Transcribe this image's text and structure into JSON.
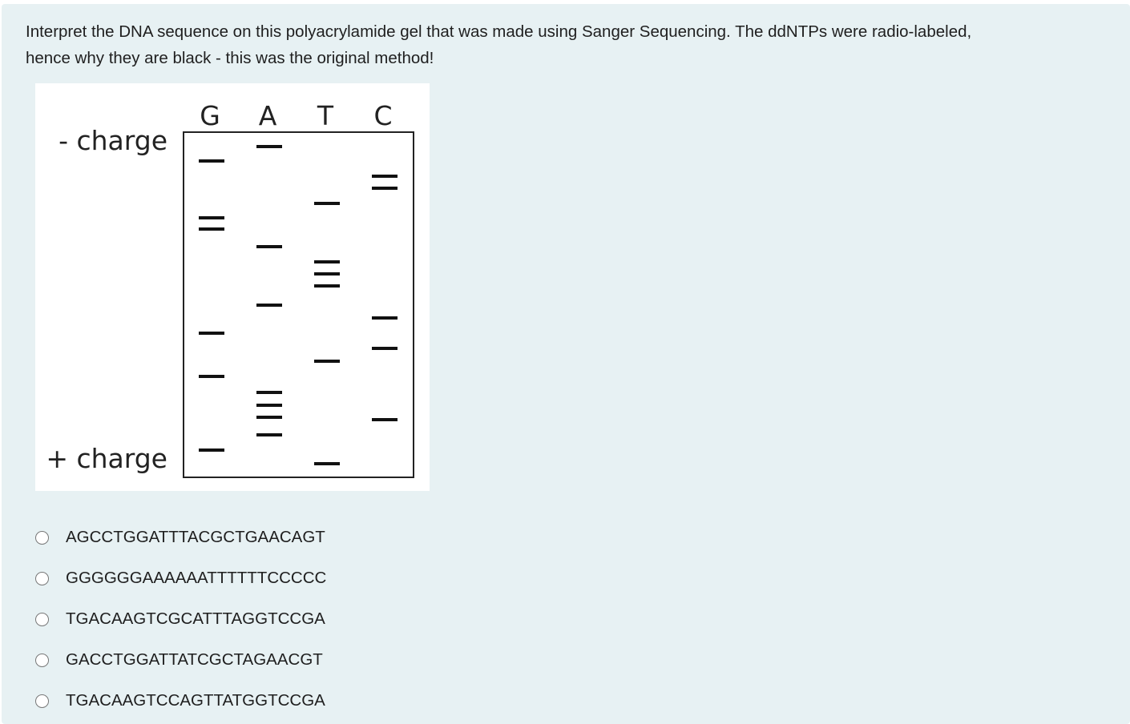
{
  "question": {
    "text_line1": "Interpret the DNA sequence on this polyacrylamide gel that was made using Sanger Sequencing. The ddNTPs were radio-labeled,",
    "text_line2": "hence why they are black - this was the original method!"
  },
  "gel": {
    "lanes": [
      "G",
      "A",
      "T",
      "C"
    ],
    "top_label": "- charge",
    "bottom_label": "+ charge"
  },
  "options": [
    "AGCCTGGATTTACGCTGAACAGT",
    "GGGGGGAAAAAATTTTTTCCCCC",
    "TGACAAGTCGCATTTAGGTCCGA",
    "GACCTGGATTATCGCTAGAACGT",
    "TGACAAGTCCAGTTATGGTCCGA"
  ]
}
